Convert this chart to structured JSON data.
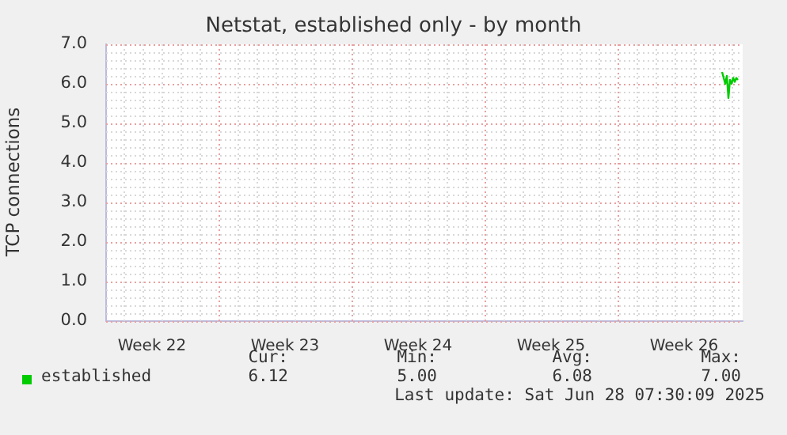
{
  "chart_data": {
    "type": "line",
    "title": "Netstat, established only - by month",
    "ylabel": "TCP connections",
    "x": [
      "2025-06-28T12:00",
      "2025-06-28T16:00",
      "2025-06-28T18:00",
      "2025-06-28T20:00",
      "2025-06-28T22:00",
      "2025-06-29T00:00",
      "2025-06-29T02:00",
      "2025-06-29T04:00",
      "2025-06-29T06:00",
      "2025-06-29T08:00"
    ],
    "series": [
      {
        "name": "established",
        "color": "#00cc00",
        "values": [
          6.3,
          6.0,
          6.2,
          5.64,
          6.1,
          6.0,
          6.15,
          6.05,
          6.15,
          6.1
        ]
      }
    ],
    "xlim": [
      "2025-05-27T02:00",
      "2025-06-29T14:00"
    ],
    "xticks": [
      {
        "value": "2025-05-29T12:00",
        "label": "Week 22"
      },
      {
        "value": "2025-06-02",
        "label": null
      },
      {
        "value": "2025-06-05T12:00",
        "label": "Week 23"
      },
      {
        "value": "2025-06-09",
        "label": null
      },
      {
        "value": "2025-06-12T12:00",
        "label": "Week 24"
      },
      {
        "value": "2025-06-16",
        "label": null
      },
      {
        "value": "2025-06-19T12:00",
        "label": "Week 25"
      },
      {
        "value": "2025-06-23",
        "label": null
      },
      {
        "value": "2025-06-26T12:00",
        "label": "Week 26"
      }
    ],
    "ylim": [
      0,
      7
    ],
    "yticks": [
      {
        "value": 0,
        "label": "0.0"
      },
      {
        "value": 1,
        "label": "1.0"
      },
      {
        "value": 2,
        "label": "2.0"
      },
      {
        "value": 3,
        "label": "3.0"
      },
      {
        "value": 4,
        "label": "4.0"
      },
      {
        "value": 5,
        "label": "5.0"
      },
      {
        "value": 6,
        "label": "6.0"
      },
      {
        "value": 7,
        "label": "7.0"
      }
    ],
    "grid": true,
    "legend": "bottom left",
    "marker": "none",
    "line_style": "solid",
    "annotations": [
      "Cur:",
      "Min:",
      "Avg:",
      "Max:",
      "6.12",
      "5.00",
      "6.08",
      "7.00",
      "Last update: Sat Jun 28 07:30:09 2025"
    ]
  }
}
